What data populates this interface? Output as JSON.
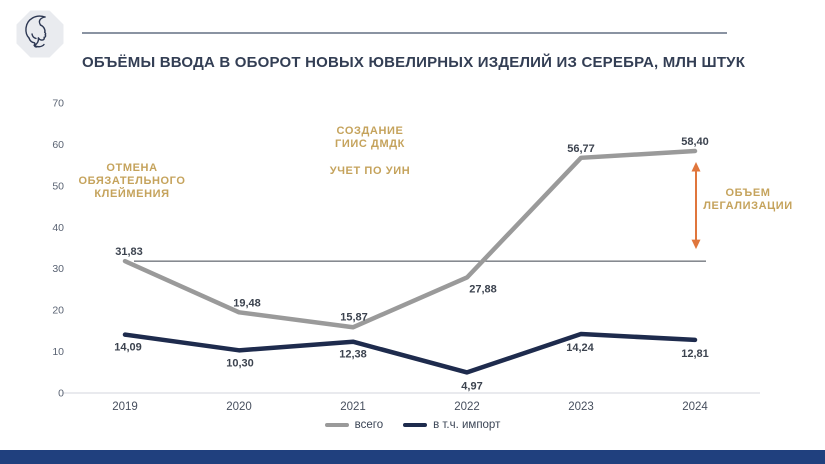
{
  "logo": {
    "icon": "woman-profile-in-octagon"
  },
  "chart_data": {
    "type": "line",
    "title": "ОБЪЁМЫ ВВОДА В ОБОРОТ НОВЫХ ЮВЕЛИРНЫХ ИЗДЕЛИЙ ИЗ СЕРЕБРА, МЛН ШТУК",
    "categories": [
      "2019",
      "2020",
      "2021",
      "2022",
      "2023",
      "2024"
    ],
    "series": [
      {
        "name": "всего",
        "color": "#9a9a9a",
        "values": [
          31.83,
          19.48,
          15.87,
          27.88,
          56.77,
          58.4
        ],
        "labels": [
          "31,83",
          "19,48",
          "15,87",
          "27,88",
          "56,77",
          "58,40"
        ]
      },
      {
        "name": "в т.ч. импорт",
        "color": "#1e2b4d",
        "values": [
          14.09,
          10.3,
          12.38,
          4.97,
          14.24,
          12.81
        ],
        "labels": [
          "14,09",
          "10,30",
          "12,38",
          "4,97",
          "14,24",
          "12,81"
        ]
      }
    ],
    "ylim": [
      0,
      70
    ],
    "yticks": [
      0,
      10,
      20,
      30,
      40,
      50,
      60,
      70
    ],
    "grid": false,
    "legend_position": "bottom",
    "reference_line": {
      "value": 31.83,
      "color": "#3f454e"
    },
    "annotations": [
      {
        "lines": [
          "ОТМЕНА",
          "ОБЯЗАТЕЛЬНОГО",
          "КЛЕЙМЕНИЯ"
        ],
        "color": "#c5a35c"
      },
      {
        "lines": [
          "СОЗДАНИЕ",
          "ГИИС ДМДК"
        ],
        "color": "#c5a35c"
      },
      {
        "lines": [
          "УЧЕТ ПО УИН"
        ],
        "color": "#c5a35c"
      },
      {
        "lines": [
          "ОБЪЕМ",
          "ЛЕГАЛИЗАЦИИ"
        ],
        "color": "#c5a35c"
      }
    ],
    "legalization_arrow": {
      "color": "#e0763c",
      "from_value": 31.83,
      "to_value": 58.4
    }
  },
  "footer": {
    "bar_color": "#20407e"
  }
}
